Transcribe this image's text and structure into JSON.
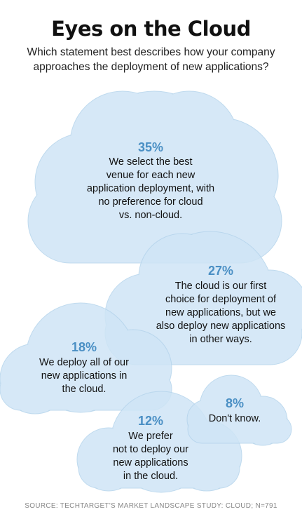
{
  "title": "Eyes on the Cloud",
  "subtitle": "Which statement best describes how your company\napproaches the deployment of new applications?",
  "source": "SOURCE: TECHTARGET'S MARKET LANDSCAPE STUDY: CLOUD; N=791",
  "colors": {
    "cloud_fill": "#cfe5f6",
    "cloud_stroke": "#b5d4ec",
    "percent": "#4a8fc4"
  },
  "chart_data": {
    "type": "bubble",
    "title": "Eyes on the Cloud",
    "unit": "%",
    "categories": [
      "We select the best venue for each new application deployment, with no preference for cloud vs. non-cloud.",
      "The cloud is our first choice for deployment of new applications, but we also deploy new applications in other ways.",
      "We deploy all of our new applications in the cloud.",
      "We prefer not to deploy our new applications in the cloud.",
      "Don't know."
    ],
    "values": [
      35,
      27,
      18,
      12,
      8
    ],
    "items": [
      {
        "percent": "35%",
        "text": "We select the best\nvenue for each new\napplication deployment, with\nno preference for cloud\nvs. non-cloud."
      },
      {
        "percent": "27%",
        "text": "The cloud is our first\nchoice for deployment of\nnew applications, but we\nalso deploy new applications\nin other ways."
      },
      {
        "percent": "18%",
        "text": "We deploy all of our\nnew applications in\nthe cloud."
      },
      {
        "percent": "12%",
        "text": "We prefer\nnot to deploy our\nnew applications\nin the cloud."
      },
      {
        "percent": "8%",
        "text": "Don't know."
      }
    ]
  }
}
